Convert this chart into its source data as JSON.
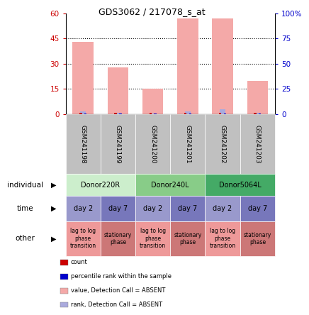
{
  "title": "GDS3062 / 217078_s_at",
  "samples": [
    "GSM241198",
    "GSM241199",
    "GSM241200",
    "GSM241201",
    "GSM241202",
    "GSM241203"
  ],
  "bar_values": [
    43,
    28,
    15,
    57,
    57,
    20
  ],
  "rank_values": [
    1.5,
    1.0,
    0.5,
    1.5,
    3.0,
    1.0
  ],
  "ylim_left": [
    0,
    60
  ],
  "ylim_right": [
    0,
    100
  ],
  "yticks_left": [
    0,
    15,
    30,
    45,
    60
  ],
  "yticks_right": [
    0,
    25,
    50,
    75,
    100
  ],
  "bar_color": "#f4a9a8",
  "rank_color": "#aaaadd",
  "count_color": "#cc0000",
  "prank_color": "#0000cc",
  "individuals": [
    {
      "label": "Donor220R",
      "cols": [
        0,
        1
      ],
      "color": "#cceecc"
    },
    {
      "label": "Donor240L",
      "cols": [
        2,
        3
      ],
      "color": "#88cc88"
    },
    {
      "label": "Donor5064L",
      "cols": [
        4,
        5
      ],
      "color": "#44aa66"
    }
  ],
  "time_labels": [
    "day 2",
    "day 7",
    "day 2",
    "day 7",
    "day 2",
    "day 7"
  ],
  "time_color_light": "#9999cc",
  "time_color_dark": "#7777bb",
  "other_labels": [
    "lag to log\nphase\ntransition",
    "stationary\nphase",
    "lag to log\nphase\ntransition",
    "stationary\nphase",
    "lag to log\nphase\ntransition",
    "stationary\nphase"
  ],
  "other_color_light": "#ee9999",
  "other_color_dark": "#cc7777",
  "gsm_bg_color": "#c0c0c0",
  "legend_items": [
    {
      "color": "#cc0000",
      "label": "count"
    },
    {
      "color": "#0000cc",
      "label": "percentile rank within the sample"
    },
    {
      "color": "#f4a9a8",
      "label": "value, Detection Call = ABSENT"
    },
    {
      "color": "#aaaadd",
      "label": "rank, Detection Call = ABSENT"
    }
  ],
  "left_tick_color": "#cc0000",
  "right_tick_color": "#0000cc"
}
